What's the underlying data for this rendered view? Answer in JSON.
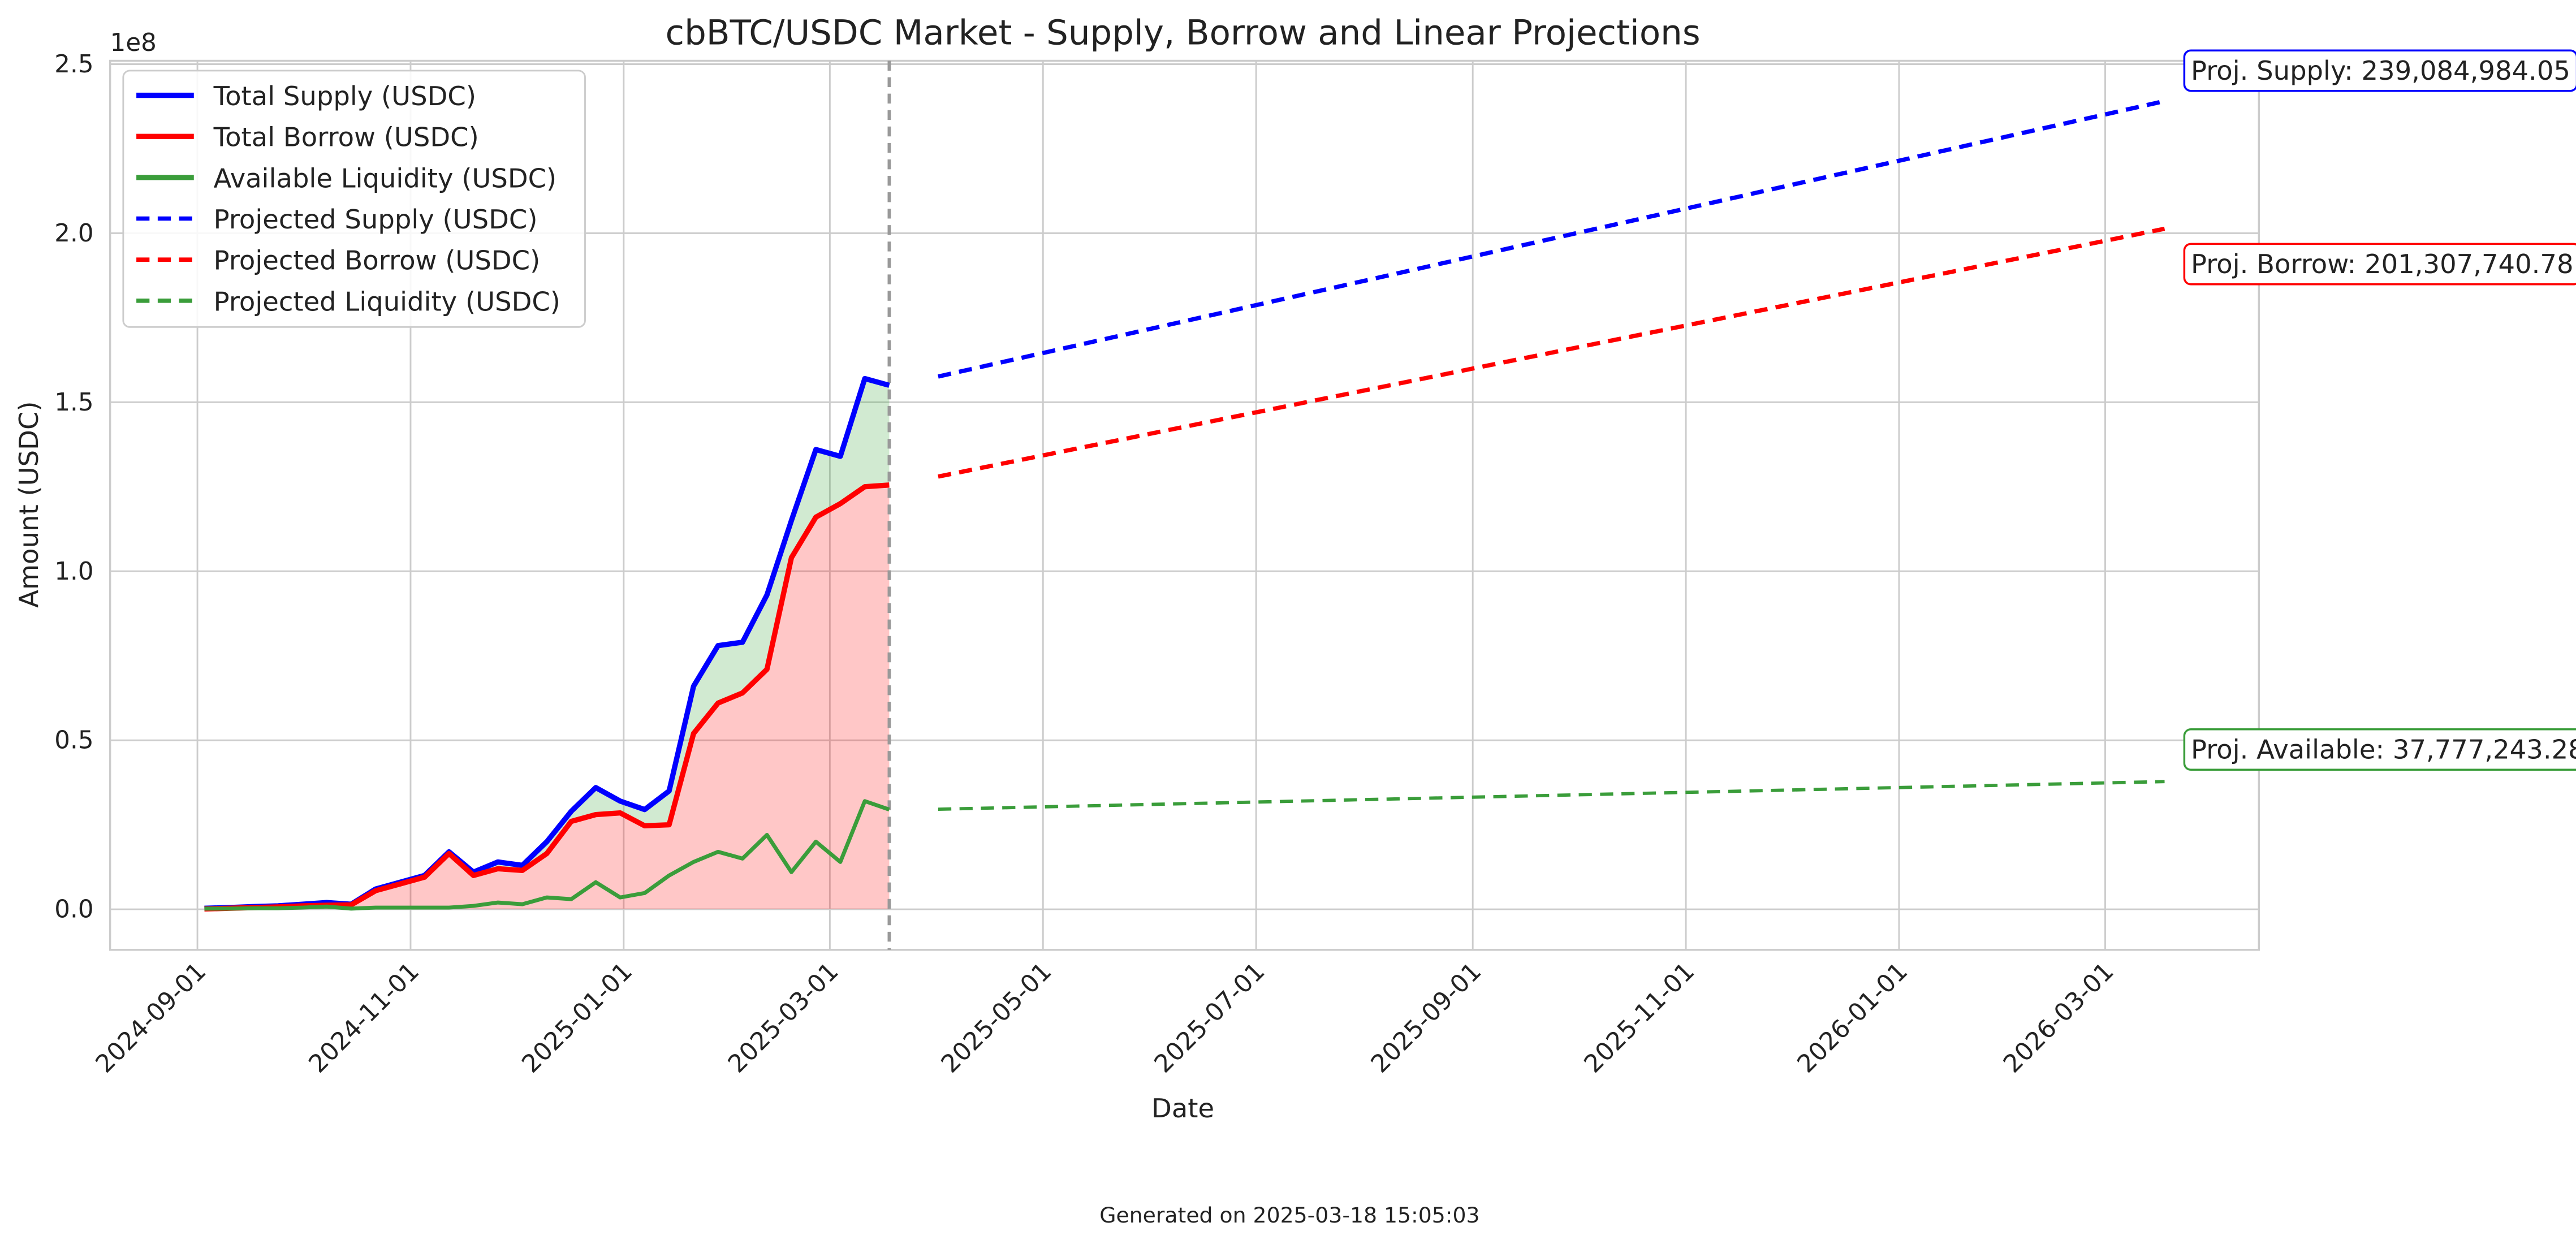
{
  "chart_data": {
    "type": "line",
    "title": "cbBTC/USDC Market - Supply, Borrow and Linear Projections",
    "x_label": "Date",
    "y_label": "Amount (USDC)",
    "y_offset_label": "1e8",
    "footer": "Generated on 2025-03-18 15:05:03",
    "x": [
      "2024-09-03",
      "2024-09-10",
      "2024-09-17",
      "2024-09-24",
      "2024-10-01",
      "2024-10-08",
      "2024-10-15",
      "2024-10-22",
      "2024-10-29",
      "2024-11-05",
      "2024-11-12",
      "2024-11-19",
      "2024-11-26",
      "2024-12-03",
      "2024-12-10",
      "2024-12-17",
      "2024-12-24",
      "2024-12-31",
      "2025-01-07",
      "2025-01-14",
      "2025-01-21",
      "2025-01-28",
      "2025-02-04",
      "2025-02-11",
      "2025-02-18",
      "2025-02-25",
      "2025-03-04",
      "2025-03-11",
      "2025-03-18"
    ],
    "series": [
      {
        "name": "Total Supply (USDC)",
        "color": "#0000ff",
        "values": [
          300000,
          500000,
          800000,
          1000000,
          1500000,
          2000000,
          1500000,
          6000000,
          8000000,
          10000000,
          17000000,
          11000000,
          14000000,
          13000000,
          20000000,
          29000000,
          36000000,
          32000000,
          29500000,
          35000000,
          66000000,
          78000000,
          79000000,
          93000000,
          115000000,
          136000000,
          134000000,
          157000000,
          155000000
        ]
      },
      {
        "name": "Total Borrow (USDC)",
        "color": "#ff0000",
        "fill": "#ff0000",
        "values": [
          100000,
          300000,
          500000,
          700000,
          1000000,
          1200000,
          1300000,
          5500000,
          7500000,
          9500000,
          16500000,
          10000000,
          12000000,
          11500000,
          16500000,
          26000000,
          28000000,
          28500000,
          24700000,
          25000000,
          52000000,
          61000000,
          64000000,
          71000000,
          104000000,
          116000000,
          120000000,
          125000000,
          125500000
        ]
      },
      {
        "name": "Available Liquidity (USDC)",
        "color": "#3a9d3a",
        "fill": "#2ca02c",
        "values": [
          200000,
          200000,
          300000,
          300000,
          500000,
          800000,
          200000,
          500000,
          500000,
          500000,
          500000,
          1000000,
          2000000,
          1500000,
          3500000,
          3000000,
          8000000,
          3500000,
          4800000,
          10000000,
          14000000,
          17000000,
          15000000,
          22000000,
          11000000,
          20000000,
          14000000,
          32000000,
          29500000
        ]
      },
      {
        "name": "Projected Supply (USDC)",
        "color": "#0000ff",
        "dashed": true,
        "x": [
          "2025-04-01",
          "2026-03-18"
        ],
        "values": [
          157600000,
          239084984.05
        ],
        "annotation": "Proj. Supply: 239,084,984.05"
      },
      {
        "name": "Projected Borrow (USDC)",
        "color": "#ff0000",
        "dashed": true,
        "x": [
          "2025-04-01",
          "2026-03-18"
        ],
        "values": [
          128000000,
          201307740.78
        ],
        "annotation": "Proj. Borrow: 201,307,740.78"
      },
      {
        "name": "Projected Liquidity (USDC)",
        "color": "#3a9d3a",
        "dashed": true,
        "x": [
          "2025-04-01",
          "2026-03-18"
        ],
        "values": [
          29600000,
          37777243.28
        ],
        "annotation": "Proj. Available: 37,777,243.28"
      }
    ],
    "xlim": [
      "2024-08-07",
      "2026-04-14"
    ],
    "xticks": [
      "2024-09-01",
      "2024-11-01",
      "2025-01-01",
      "2025-03-01",
      "2025-05-01",
      "2025-07-01",
      "2025-09-01",
      "2025-11-01",
      "2026-01-01",
      "2026-03-01"
    ],
    "ylim": [
      -12000000,
      251000000
    ],
    "yticks": [
      {
        "value": 0,
        "label": "0.0"
      },
      {
        "value": 50000000,
        "label": "0.5"
      },
      {
        "value": 100000000,
        "label": "1.0"
      },
      {
        "value": 150000000,
        "label": "1.5"
      },
      {
        "value": 200000000,
        "label": "2.0"
      },
      {
        "value": 250000000,
        "label": "2.5"
      }
    ],
    "grid": true,
    "legend": "upper left"
  }
}
